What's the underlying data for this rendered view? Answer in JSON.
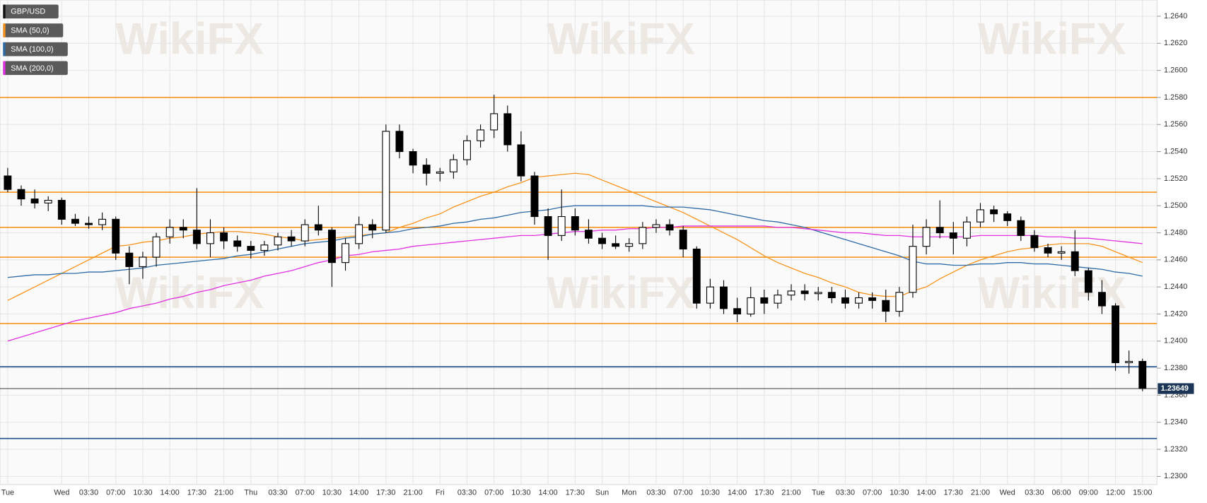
{
  "chart_data": {
    "type": "candlestick",
    "watermark": "WikiFX",
    "categories": [
      "Tue",
      null,
      null,
      null,
      "Wed",
      null,
      "03:30",
      null,
      "07:00",
      null,
      "10:30",
      null,
      "14:00",
      null,
      "17:30",
      null,
      "21:00",
      null,
      "Thu",
      null,
      "03:30",
      null,
      "07:00",
      null,
      "10:30",
      null,
      "14:00",
      null,
      "17:30",
      null,
      "21:00",
      null,
      "Fri",
      null,
      "03:30",
      null,
      "07:00",
      null,
      "10:30",
      null,
      "14:00",
      null,
      "17:30",
      null,
      "Sun",
      null,
      "Mon",
      null,
      "03:30",
      null,
      "07:00",
      null,
      "10:30",
      null,
      "14:00",
      null,
      "17:30",
      null,
      "21:00",
      null,
      "Tue",
      null,
      "03:30",
      null,
      "07:00",
      null,
      "10:30",
      null,
      "14:00",
      null,
      "17:30",
      null,
      "21:00",
      null,
      "Wed",
      null,
      "03:30",
      null,
      "06:00",
      null,
      "09:00",
      null,
      "12:00",
      null,
      "15:00"
    ],
    "series": [
      {
        "name": "GBP/USD",
        "color": "#000000",
        "open": [
          1.2522,
          1.2512,
          1.2505,
          1.2502,
          1.2504,
          1.249,
          1.2487,
          1.2486,
          1.249,
          1.2465,
          1.2455,
          1.2462,
          1.2477,
          1.2484,
          1.2482,
          1.2472,
          1.248,
          1.2474,
          1.247,
          1.2467,
          1.2471,
          1.2477,
          1.2474,
          1.2486,
          1.2482,
          1.2458,
          1.2472,
          1.2486,
          1.2482,
          1.2555,
          1.254,
          1.253,
          1.2524,
          1.2525,
          1.2534,
          1.2548,
          1.2556,
          1.2568,
          1.2545,
          1.2522,
          1.2492,
          1.2478,
          1.2492,
          1.2482,
          1.2476,
          1.2472,
          1.247,
          1.2472,
          1.2484,
          1.2486,
          1.2482,
          1.2468,
          1.2428,
          1.244,
          1.2424,
          1.242,
          1.2432,
          1.2428,
          1.2434,
          1.2437,
          1.2435,
          1.2436,
          1.2432,
          1.2428,
          1.2432,
          1.243,
          1.2422,
          1.2436,
          1.247,
          1.2484,
          1.248,
          1.2476,
          1.2488,
          1.2497,
          1.2494,
          1.2489,
          1.2478,
          1.2469,
          1.2465,
          1.2466,
          1.2452,
          1.2436,
          1.2426,
          1.2384,
          1.2385
        ],
        "high": [
          1.2528,
          1.2515,
          1.2512,
          1.2507,
          1.2506,
          1.2494,
          1.2492,
          1.2495,
          1.2492,
          1.247,
          1.2466,
          1.248,
          1.249,
          1.249,
          1.2513,
          1.249,
          1.2484,
          1.2478,
          1.2474,
          1.2474,
          1.248,
          1.2482,
          1.249,
          1.25,
          1.2484,
          1.2476,
          1.2492,
          1.249,
          1.256,
          1.256,
          1.2542,
          1.2535,
          1.2528,
          1.2538,
          1.2552,
          1.256,
          1.2582,
          1.2574,
          1.2555,
          1.2525,
          1.2498,
          1.2512,
          1.2498,
          1.249,
          1.248,
          1.2478,
          1.2476,
          1.2488,
          1.249,
          1.249,
          1.2485,
          1.247,
          1.2446,
          1.2445,
          1.2432,
          1.244,
          1.2438,
          1.2438,
          1.2442,
          1.2442,
          1.244,
          1.244,
          1.2438,
          1.2436,
          1.2436,
          1.2438,
          1.244,
          1.2486,
          1.249,
          1.2504,
          1.2488,
          1.2492,
          1.2502,
          1.25,
          1.2496,
          1.2492,
          1.2482,
          1.2472,
          1.247,
          1.2482,
          1.2454,
          1.2445,
          1.2428,
          1.2393,
          1.2387
        ],
        "low": [
          1.251,
          1.25,
          1.2498,
          1.2496,
          1.2486,
          1.2485,
          1.2483,
          1.2482,
          1.246,
          1.2442,
          1.2446,
          1.2455,
          1.2472,
          1.2476,
          1.2468,
          1.2462,
          1.2468,
          1.2466,
          1.2461,
          1.2463,
          1.2467,
          1.247,
          1.247,
          1.2478,
          1.244,
          1.2452,
          1.2468,
          1.2476,
          1.248,
          1.2535,
          1.2524,
          1.2515,
          1.2518,
          1.252,
          1.253,
          1.2543,
          1.255,
          1.254,
          1.2518,
          1.2486,
          1.246,
          1.2474,
          1.2478,
          1.2472,
          1.2468,
          1.2468,
          1.2466,
          1.2468,
          1.248,
          1.2478,
          1.2462,
          1.2424,
          1.2424,
          1.242,
          1.2414,
          1.2418,
          1.242,
          1.2424,
          1.243,
          1.243,
          1.243,
          1.2428,
          1.2424,
          1.2424,
          1.2424,
          1.2414,
          1.2418,
          1.2432,
          1.2464,
          1.2476,
          1.2464,
          1.247,
          1.2484,
          1.2488,
          1.2485,
          1.2474,
          1.2466,
          1.2462,
          1.246,
          1.2448,
          1.243,
          1.242,
          1.2378,
          1.2376,
          1.2363
        ],
        "close": [
          1.2512,
          1.2505,
          1.2502,
          1.2504,
          1.249,
          1.2487,
          1.2486,
          1.249,
          1.2465,
          1.2455,
          1.2462,
          1.2477,
          1.2484,
          1.2482,
          1.2472,
          1.248,
          1.2474,
          1.247,
          1.2467,
          1.2471,
          1.2477,
          1.2474,
          1.2486,
          1.2482,
          1.2458,
          1.2472,
          1.2486,
          1.2482,
          1.2555,
          1.254,
          1.253,
          1.2524,
          1.2525,
          1.2534,
          1.2548,
          1.2556,
          1.2568,
          1.2545,
          1.2522,
          1.2492,
          1.2478,
          1.2492,
          1.2482,
          1.2476,
          1.2472,
          1.247,
          1.2472,
          1.2484,
          1.2486,
          1.2482,
          1.2468,
          1.2428,
          1.244,
          1.2424,
          1.242,
          1.2432,
          1.2428,
          1.2434,
          1.2437,
          1.2435,
          1.2436,
          1.2432,
          1.2428,
          1.2432,
          1.243,
          1.2422,
          1.2436,
          1.247,
          1.2484,
          1.248,
          1.2476,
          1.2488,
          1.2497,
          1.2494,
          1.2489,
          1.2478,
          1.2469,
          1.2465,
          1.2466,
          1.2452,
          1.2436,
          1.2426,
          1.2384,
          1.2385,
          1.23649
        ]
      },
      {
        "name": "SMA (50,0)",
        "color": "#f7941d",
        "values": [
          1.243,
          1.2435,
          1.244,
          1.2445,
          1.245,
          1.2455,
          1.246,
          1.2465,
          1.247,
          1.2471,
          1.2473,
          1.2474,
          1.2476,
          1.2477,
          1.2479,
          1.248,
          1.2481,
          1.2481,
          1.248,
          1.2479,
          1.2477,
          1.2476,
          1.2474,
          1.2475,
          1.2476,
          1.2477,
          1.2478,
          1.2479,
          1.248,
          1.2484,
          1.2487,
          1.2491,
          1.2494,
          1.2499,
          1.2503,
          1.2507,
          1.251,
          1.2514,
          1.2517,
          1.2521,
          1.2522,
          1.2523,
          1.2524,
          1.2523,
          1.2519,
          1.2515,
          1.2511,
          1.2507,
          1.2503,
          1.2499,
          1.2495,
          1.249,
          1.2485,
          1.248,
          1.2475,
          1.2469,
          1.2463,
          1.2458,
          1.2454,
          1.245,
          1.2447,
          1.2443,
          1.244,
          1.2436,
          1.2434,
          1.2433,
          1.2433,
          1.2437,
          1.244,
          1.2446,
          1.2451,
          1.2456,
          1.246,
          1.2463,
          1.2466,
          1.2468,
          1.2469,
          1.2471,
          1.2472,
          1.2472,
          1.2472,
          1.247,
          1.2466,
          1.2462,
          1.2458
        ]
      },
      {
        "name": "SMA (100,0)",
        "color": "#2e6aa6",
        "values": [
          1.2447,
          1.2448,
          1.2449,
          1.2449,
          1.245,
          1.245,
          1.2451,
          1.2451,
          1.2452,
          1.2453,
          1.2454,
          1.2456,
          1.2457,
          1.2458,
          1.2459,
          1.246,
          1.2461,
          1.2463,
          1.2464,
          1.2466,
          1.2468,
          1.247,
          1.2472,
          1.2473,
          1.2474,
          1.2476,
          1.2477,
          1.2479,
          1.248,
          1.2481,
          1.2483,
          1.2484,
          1.2485,
          1.2487,
          1.2488,
          1.249,
          1.2491,
          1.2493,
          1.2495,
          1.2496,
          1.2497,
          1.2499,
          1.25,
          1.25,
          1.25,
          1.25,
          1.25,
          1.25,
          1.2499,
          1.2499,
          1.2499,
          1.2498,
          1.2497,
          1.2495,
          1.2493,
          1.2491,
          1.2489,
          1.2488,
          1.2486,
          1.2484,
          1.2481,
          1.2478,
          1.2475,
          1.2472,
          1.2469,
          1.2466,
          1.2463,
          1.2459,
          1.2457,
          1.2457,
          1.2456,
          1.2456,
          1.2457,
          1.2457,
          1.2458,
          1.2458,
          1.2457,
          1.2457,
          1.2456,
          1.2455,
          1.2454,
          1.2453,
          1.2451,
          1.245,
          1.2448
        ]
      },
      {
        "name": "SMA (200,0)",
        "color": "#e030e0",
        "values": [
          1.24,
          1.2403,
          1.2406,
          1.2409,
          1.2412,
          1.2415,
          1.2417,
          1.2419,
          1.2421,
          1.2424,
          1.2426,
          1.2428,
          1.2431,
          1.2433,
          1.2436,
          1.2438,
          1.2441,
          1.2443,
          1.2445,
          1.2448,
          1.245,
          1.2452,
          1.2455,
          1.2458,
          1.246,
          1.2463,
          1.2464,
          1.2466,
          1.2467,
          1.2468,
          1.247,
          1.2471,
          1.2472,
          1.2473,
          1.2474,
          1.2475,
          1.2476,
          1.2477,
          1.2478,
          1.2478,
          1.2479,
          1.248,
          1.2481,
          1.2481,
          1.2482,
          1.2482,
          1.2483,
          1.2483,
          1.2484,
          1.2484,
          1.2485,
          1.2485,
          1.2485,
          1.2485,
          1.2485,
          1.2485,
          1.2485,
          1.2484,
          1.2484,
          1.2483,
          1.2482,
          1.2481,
          1.248,
          1.248,
          1.2479,
          1.2478,
          1.2478,
          1.2477,
          1.2477,
          1.2477,
          1.2477,
          1.2477,
          1.2478,
          1.2478,
          1.2478,
          1.2478,
          1.2478,
          1.2477,
          1.2477,
          1.2476,
          1.2476,
          1.2475,
          1.2474,
          1.2473,
          1.2472
        ]
      }
    ],
    "levels": [
      {
        "value": 1.258,
        "color": "#f7941d"
      },
      {
        "value": 1.251,
        "color": "#f7941d"
      },
      {
        "value": 1.2484,
        "color": "#f7941d"
      },
      {
        "value": 1.2462,
        "color": "#f7941d"
      },
      {
        "value": 1.2413,
        "color": "#f7941d"
      },
      {
        "value": 1.2381,
        "color": "#1f4e8c"
      },
      {
        "value": 1.2328,
        "color": "#1f4e8c"
      }
    ],
    "last_price": {
      "value": 1.23649,
      "label": "1.23649"
    },
    "ylim": [
      1.2294,
      1.2652
    ],
    "yticks": [
      {
        "value": 1.23,
        "label": "1.2300"
      },
      {
        "value": 1.232,
        "label": "1.2320"
      },
      {
        "value": 1.234,
        "label": "1.2340"
      },
      {
        "value": 1.236,
        "label": "1.2360"
      },
      {
        "value": 1.238,
        "label": "1.2380"
      },
      {
        "value": 1.24,
        "label": "1.2400"
      },
      {
        "value": 1.242,
        "label": "1.2420"
      },
      {
        "value": 1.244,
        "label": "1.2440"
      },
      {
        "value": 1.246,
        "label": "1.2460"
      },
      {
        "value": 1.248,
        "label": "1.2480"
      },
      {
        "value": 1.25,
        "label": "1.2500"
      },
      {
        "value": 1.252,
        "label": "1.2520"
      },
      {
        "value": 1.254,
        "label": "1.2540"
      },
      {
        "value": 1.256,
        "label": "1.2560"
      },
      {
        "value": 1.258,
        "label": "1.2580"
      },
      {
        "value": 1.26,
        "label": "1.2600"
      },
      {
        "value": 1.262,
        "label": "1.2620"
      },
      {
        "value": 1.264,
        "label": "1.2640"
      }
    ],
    "grid": true
  }
}
